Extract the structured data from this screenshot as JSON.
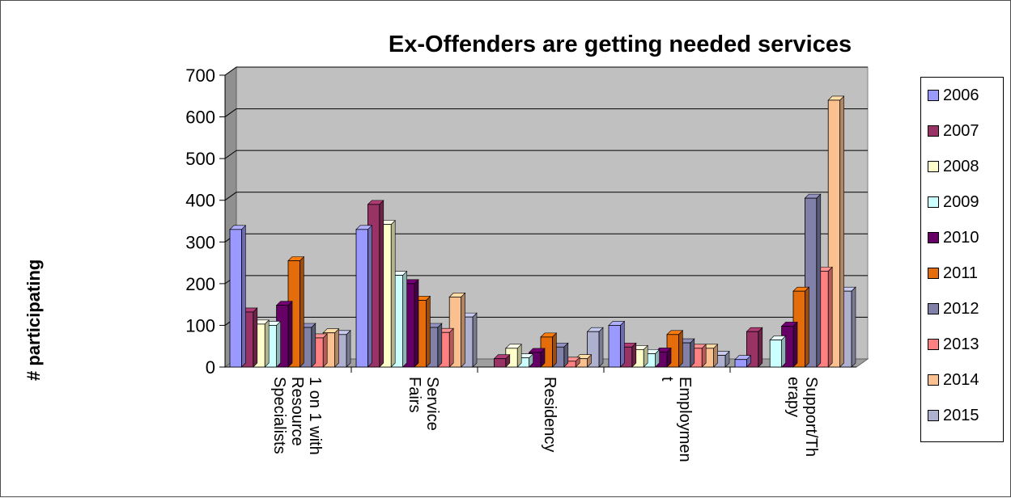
{
  "chart_data": {
    "type": "bar",
    "title": "Ex-Offenders are getting needed services",
    "ylabel": "# participating",
    "xlabel": "",
    "ylim": [
      0,
      700
    ],
    "yticks": [
      0,
      100,
      200,
      300,
      400,
      500,
      600,
      700
    ],
    "grid": true,
    "legend_position": "right",
    "categories": [
      "1 on 1 with Resource Specialists",
      "Service Fairs",
      "Residency",
      "Employment",
      "Support/Therapy"
    ],
    "category_label_lines": [
      [
        "1 on 1 with",
        "Resource",
        "Specialists"
      ],
      [
        "Service",
        "Fairs"
      ],
      [
        "Residency"
      ],
      [
        "Employmen",
        "t"
      ],
      [
        "Support/Th",
        "erapy"
      ]
    ],
    "series": [
      {
        "name": "2006",
        "color": "#9999ff",
        "values": [
          330,
          330,
          0,
          100,
          18
        ]
      },
      {
        "name": "2007",
        "color": "#993366",
        "values": [
          132,
          390,
          20,
          48,
          85
        ]
      },
      {
        "name": "2008",
        "color": "#ffffcc",
        "values": [
          103,
          342,
          45,
          42,
          0
        ]
      },
      {
        "name": "2009",
        "color": "#ccffff",
        "values": [
          100,
          220,
          22,
          32,
          65
        ]
      },
      {
        "name": "2010",
        "color": "#660066",
        "values": [
          148,
          200,
          35,
          36,
          98
        ]
      },
      {
        "name": "2011",
        "color": "#e46c0a",
        "values": [
          255,
          160,
          72,
          78,
          182
        ]
      },
      {
        "name": "2012",
        "color": "#8080a8",
        "values": [
          95,
          95,
          48,
          58,
          405
        ]
      },
      {
        "name": "2013",
        "color": "#ff8080",
        "values": [
          70,
          83,
          14,
          45,
          230
        ]
      },
      {
        "name": "2014",
        "color": "#fac090",
        "values": [
          82,
          168,
          20,
          45,
          640
        ]
      },
      {
        "name": "2015",
        "color": "#aeb0d0",
        "values": [
          78,
          120,
          85,
          28,
          182
        ]
      }
    ]
  }
}
